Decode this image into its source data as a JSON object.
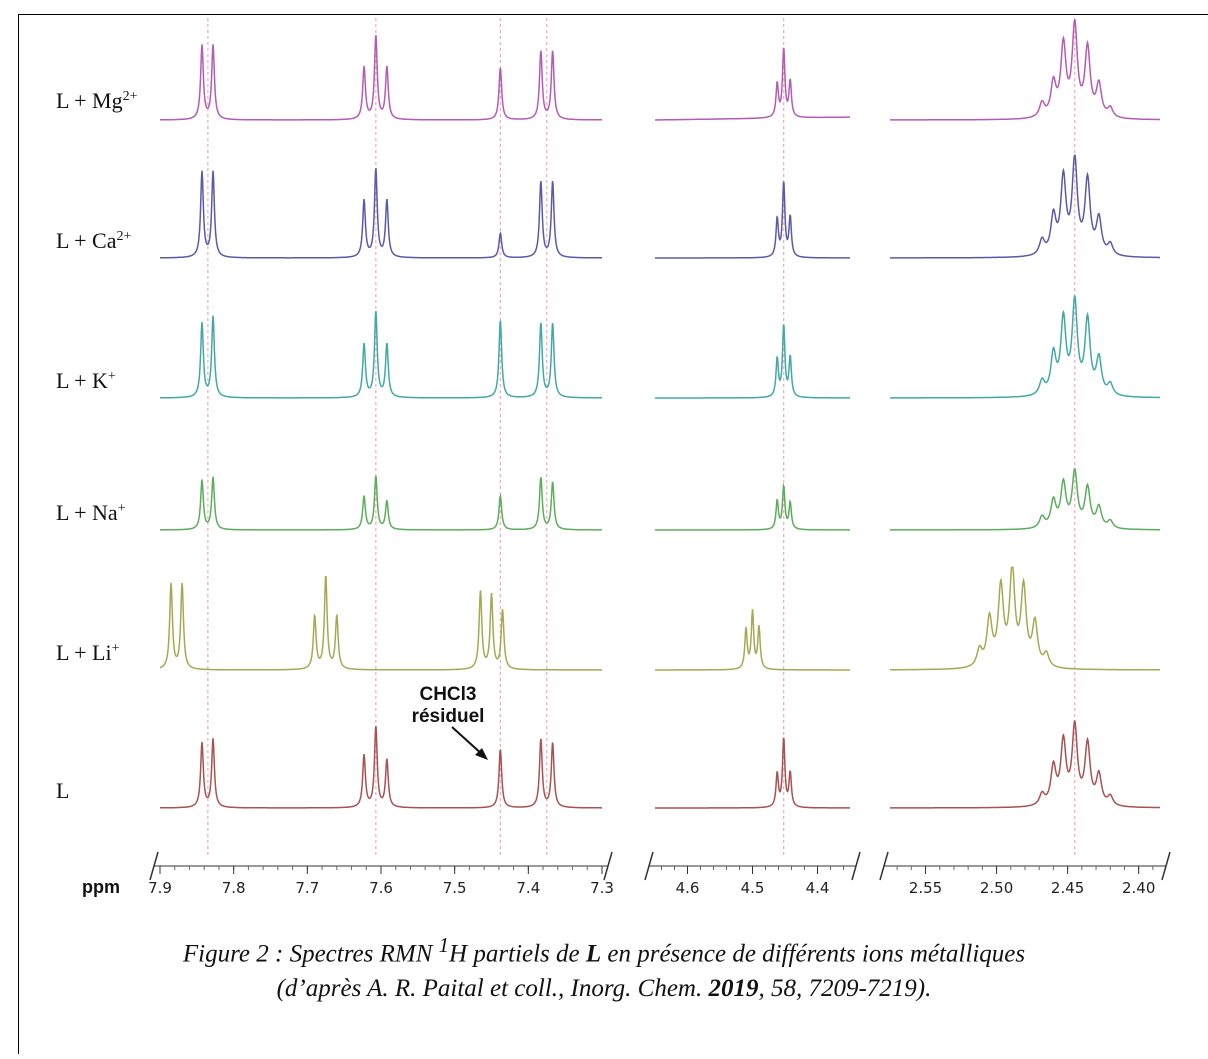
{
  "chart_data": {
    "type": "line",
    "title": "",
    "xlabel": "ppm",
    "rows": [
      {
        "label": "L + Mg2+",
        "label_base": "L + Mg",
        "label_sup": "2+",
        "color": "#b45cb4",
        "peaks": [
          [
            7.843,
            0.78
          ],
          [
            7.828,
            0.78
          ],
          [
            7.623,
            0.55
          ],
          [
            7.607,
            0.88
          ],
          [
            7.592,
            0.55
          ],
          [
            7.438,
            0.55
          ],
          [
            7.383,
            0.72
          ],
          [
            7.367,
            0.72
          ],
          [
            4.462,
            0.35
          ],
          [
            4.452,
            0.72
          ],
          [
            4.442,
            0.38
          ],
          [
            2.468,
            0.15
          ],
          [
            2.46,
            0.35
          ],
          [
            2.453,
            0.75
          ],
          [
            2.445,
            0.95
          ],
          [
            2.436,
            0.72
          ],
          [
            2.428,
            0.34
          ],
          [
            2.42,
            0.1
          ]
        ]
      },
      {
        "label": "L + Ca2+",
        "label_base": "L + Ca",
        "label_sup": "2+",
        "color": "#5b5aa8",
        "peaks": [
          [
            7.843,
            0.9
          ],
          [
            7.828,
            0.9
          ],
          [
            7.623,
            0.6
          ],
          [
            7.607,
            0.93
          ],
          [
            7.592,
            0.6
          ],
          [
            7.438,
            0.26
          ],
          [
            7.383,
            0.8
          ],
          [
            7.367,
            0.8
          ],
          [
            4.462,
            0.4
          ],
          [
            4.452,
            0.78
          ],
          [
            4.442,
            0.42
          ],
          [
            2.468,
            0.16
          ],
          [
            2.46,
            0.4
          ],
          [
            2.453,
            0.8
          ],
          [
            2.445,
            0.98
          ],
          [
            2.436,
            0.78
          ],
          [
            2.428,
            0.38
          ],
          [
            2.42,
            0.12
          ]
        ]
      },
      {
        "label": "L + K+",
        "label_base": "L + K",
        "label_sup": "+",
        "color": "#42a8a8",
        "peaks": [
          [
            7.843,
            0.78
          ],
          [
            7.828,
            0.85
          ],
          [
            7.623,
            0.56
          ],
          [
            7.607,
            0.9
          ],
          [
            7.592,
            0.56
          ],
          [
            7.438,
            0.82
          ],
          [
            7.383,
            0.78
          ],
          [
            7.367,
            0.78
          ],
          [
            4.462,
            0.4
          ],
          [
            4.452,
            0.75
          ],
          [
            4.442,
            0.42
          ],
          [
            2.468,
            0.15
          ],
          [
            2.46,
            0.42
          ],
          [
            2.453,
            0.78
          ],
          [
            2.445,
            0.96
          ],
          [
            2.436,
            0.78
          ],
          [
            2.428,
            0.38
          ],
          [
            2.42,
            0.12
          ]
        ]
      },
      {
        "label": "L + Na+",
        "label_base": "L + Na",
        "label_sup": "+",
        "color": "#5cad5c",
        "peaks": [
          [
            7.843,
            0.52
          ],
          [
            7.828,
            0.55
          ],
          [
            7.623,
            0.35
          ],
          [
            7.607,
            0.56
          ],
          [
            7.592,
            0.3
          ],
          [
            7.438,
            0.36
          ],
          [
            7.383,
            0.55
          ],
          [
            7.367,
            0.5
          ],
          [
            4.462,
            0.3
          ],
          [
            4.452,
            0.45
          ],
          [
            4.442,
            0.28
          ],
          [
            2.468,
            0.12
          ],
          [
            2.46,
            0.28
          ],
          [
            2.453,
            0.46
          ],
          [
            2.445,
            0.58
          ],
          [
            2.436,
            0.42
          ],
          [
            2.428,
            0.22
          ],
          [
            2.42,
            0.08
          ]
        ]
      },
      {
        "label": "L + Li+",
        "label_base": "L + Li",
        "label_sup": "+",
        "color": "#a8a854",
        "peaks": [
          [
            7.885,
            0.9
          ],
          [
            7.87,
            0.9
          ],
          [
            7.69,
            0.56
          ],
          [
            7.675,
            0.98
          ],
          [
            7.66,
            0.56
          ],
          [
            7.465,
            0.82
          ],
          [
            7.45,
            0.78
          ],
          [
            7.435,
            0.62
          ],
          [
            4.51,
            0.42
          ],
          [
            4.5,
            0.6
          ],
          [
            4.49,
            0.44
          ],
          [
            2.512,
            0.18
          ],
          [
            2.505,
            0.5
          ],
          [
            2.497,
            0.82
          ],
          [
            2.489,
            1.0
          ],
          [
            2.481,
            0.82
          ],
          [
            2.473,
            0.46
          ],
          [
            2.465,
            0.14
          ]
        ]
      },
      {
        "label": "L",
        "label_base": "L",
        "label_sup": "",
        "color": "#a85252",
        "peaks": [
          [
            7.843,
            0.68
          ],
          [
            7.828,
            0.72
          ],
          [
            7.623,
            0.55
          ],
          [
            7.607,
            0.85
          ],
          [
            7.592,
            0.5
          ],
          [
            7.438,
            0.62
          ],
          [
            7.383,
            0.72
          ],
          [
            7.367,
            0.68
          ],
          [
            4.462,
            0.35
          ],
          [
            4.452,
            0.72
          ],
          [
            4.442,
            0.36
          ],
          [
            2.468,
            0.12
          ],
          [
            2.46,
            0.4
          ],
          [
            2.453,
            0.66
          ],
          [
            2.445,
            0.82
          ],
          [
            2.436,
            0.64
          ],
          [
            2.428,
            0.32
          ],
          [
            2.42,
            0.1
          ]
        ]
      }
    ],
    "x_axes": [
      {
        "range": [
          7.9,
          7.3
        ],
        "ticks": [
          7.9,
          7.8,
          7.7,
          7.6,
          7.5,
          7.4,
          7.3
        ],
        "tick_labels": [
          "7.9",
          "7.8",
          "7.7",
          "7.6",
          "7.5",
          "7.4",
          "7.3"
        ]
      },
      {
        "range": [
          4.65,
          4.35
        ],
        "ticks": [
          4.6,
          4.5,
          4.4
        ],
        "tick_labels": [
          "4.6",
          "4.5",
          "4.4"
        ]
      },
      {
        "range": [
          2.575,
          2.385
        ],
        "ticks": [
          2.55,
          2.5,
          2.45,
          2.4
        ],
        "tick_labels": [
          "2.55",
          "2.50",
          "2.45",
          "2.40"
        ]
      }
    ],
    "reference_lines_ppm": [
      7.835,
      7.607,
      7.438,
      7.375,
      4.452,
      2.445
    ],
    "annotation": {
      "line1": "CHCl3",
      "line2": "résiduel"
    },
    "grid": false
  },
  "caption": {
    "prefix": "Figure 2 : Spectres RMN ",
    "sup": "1",
    "mid1": "H partiels de ",
    "bold1": "L",
    "mid2": " en présence de différents ions métalliques",
    "line2_pre": "(d’après A. R. Paital et coll., Inorg. Chem. ",
    "bold2": "2019",
    "line2_post": ", 58, 7209-7219)."
  }
}
